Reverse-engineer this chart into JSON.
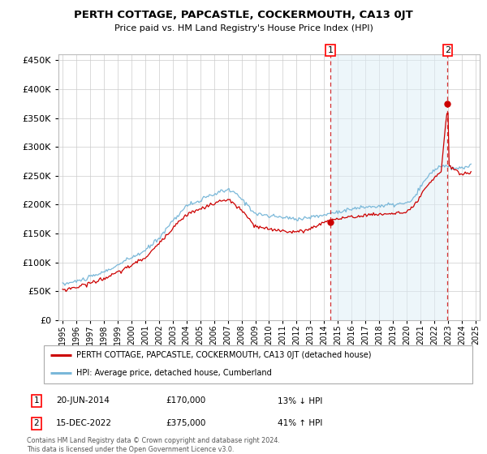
{
  "title": "PERTH COTTAGE, PAPCASTLE, COCKERMOUTH, CA13 0JT",
  "subtitle": "Price paid vs. HM Land Registry's House Price Index (HPI)",
  "ylim": [
    0,
    460000
  ],
  "yticks": [
    0,
    50000,
    100000,
    150000,
    200000,
    250000,
    300000,
    350000,
    400000,
    450000
  ],
  "hpi_color": "#7ab8d9",
  "price_color": "#cc0000",
  "grid_color": "#cccccc",
  "shade_color": "#ddeef7",
  "sale1_date": "20-JUN-2014",
  "sale1_price": 170000,
  "sale1_hpi_diff": "13% ↓ HPI",
  "sale1_label": "1",
  "sale2_date": "15-DEC-2022",
  "sale2_price": 375000,
  "sale2_hpi_diff": "41% ↑ HPI",
  "sale2_label": "2",
  "legend_price_label": "PERTH COTTAGE, PAPCASTLE, COCKERMOUTH, CA13 0JT (detached house)",
  "legend_hpi_label": "HPI: Average price, detached house, Cumberland",
  "footer": "Contains HM Land Registry data © Crown copyright and database right 2024.\nThis data is licensed under the Open Government Licence v3.0.",
  "sale1_x": 2014.46,
  "sale2_x": 2022.96,
  "xlim_left": 1994.7,
  "xlim_right": 2025.3,
  "xticks": [
    1995,
    1996,
    1997,
    1998,
    1999,
    2000,
    2001,
    2002,
    2003,
    2004,
    2005,
    2006,
    2007,
    2008,
    2009,
    2010,
    2011,
    2012,
    2013,
    2014,
    2015,
    2016,
    2017,
    2018,
    2019,
    2020,
    2021,
    2022,
    2023,
    2024,
    2025
  ]
}
